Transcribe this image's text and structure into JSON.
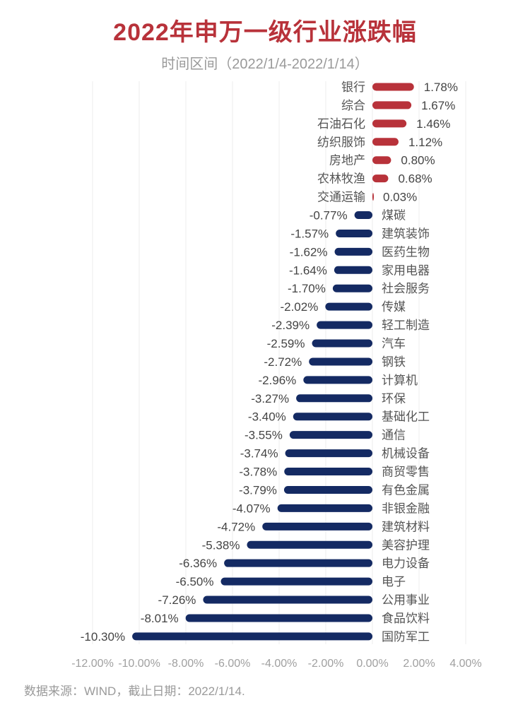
{
  "colors": {
    "positive": "#b8323a",
    "negative": "#142a63",
    "title": "#b8323a",
    "grid": "#ececec",
    "axis_text": "#a0a0a0",
    "label_text": "#555555"
  },
  "chart_data": {
    "type": "bar",
    "orientation": "horizontal",
    "title": "2022年申万一级行业涨跌幅",
    "subtitle": "时间区间（2022/1/4-2022/1/14）",
    "xlim": [
      -12,
      4
    ],
    "xticks": [
      -12,
      -10,
      -8,
      -6,
      -4,
      -2,
      0,
      2,
      4
    ],
    "xtick_labels": [
      "-12.00%",
      "-10.00%",
      "-8.00%",
      "-6.00%",
      "-4.00%",
      "-2.00%",
      "0.00%",
      "2.00%",
      "4.00%"
    ],
    "grid": "vertical",
    "legend": "none",
    "categories": [
      "银行",
      "综合",
      "石油石化",
      "纺织服饰",
      "房地产",
      "农林牧渔",
      "交通运输",
      "煤碳",
      "建筑装饰",
      "医药生物",
      "家用电器",
      "社会服务",
      "传媒",
      "轻工制造",
      "汽车",
      "钢铁",
      "计算机",
      "环保",
      "基础化工",
      "通信",
      "机械设备",
      "商贸零售",
      "有色金属",
      "非银金融",
      "建筑材料",
      "美容护理",
      "电力设备",
      "电子",
      "公用事业",
      "食品饮料",
      "国防军工"
    ],
    "values": [
      1.78,
      1.67,
      1.46,
      1.12,
      0.8,
      0.68,
      0.03,
      -0.77,
      -1.57,
      -1.62,
      -1.64,
      -1.7,
      -2.02,
      -2.39,
      -2.59,
      -2.72,
      -2.96,
      -3.27,
      -3.4,
      -3.55,
      -3.74,
      -3.78,
      -3.79,
      -4.07,
      -4.72,
      -5.38,
      -6.36,
      -6.5,
      -7.26,
      -8.01,
      -10.3
    ],
    "value_labels": [
      "1.78%",
      "1.67%",
      "1.46%",
      "1.12%",
      "0.80%",
      "0.68%",
      "0.03%",
      "-0.77%",
      "-1.57%",
      "-1.62%",
      "-1.64%",
      "-1.70%",
      "-2.02%",
      "-2.39%",
      "-2.59%",
      "-2.72%",
      "-2.96%",
      "-3.27%",
      "-3.40%",
      "-3.55%",
      "-3.74%",
      "-3.78%",
      "-3.79%",
      "-4.07%",
      "-4.72%",
      "-5.38%",
      "-6.36%",
      "-6.50%",
      "-7.26%",
      "-8.01%",
      "-10.30%"
    ]
  },
  "footer": {
    "source": "数据来源：WIND，截止日期：2022/1/14."
  }
}
